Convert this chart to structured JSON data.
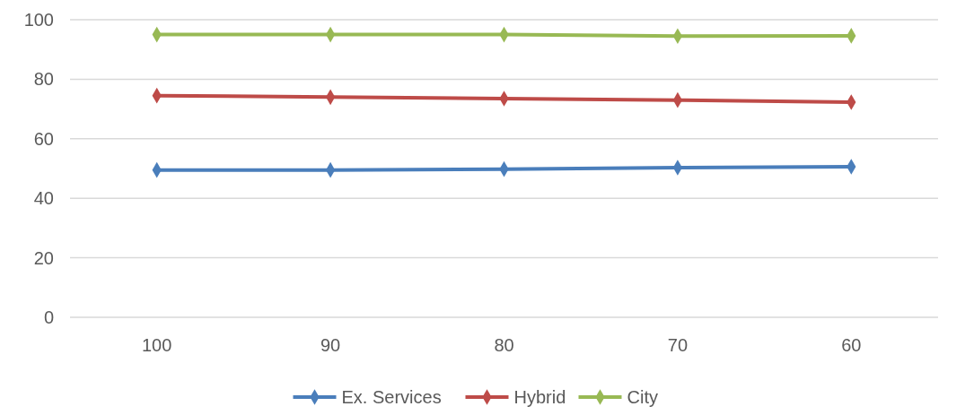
{
  "chart_data": {
    "type": "line",
    "categories": [
      "100",
      "90",
      "80",
      "70",
      "60"
    ],
    "series": [
      {
        "name": "Ex. Services",
        "color": "#4a7ebb",
        "values": [
          49.5,
          49.5,
          49.8,
          50.3,
          50.6
        ]
      },
      {
        "name": "Hybrid",
        "color": "#be4b48",
        "values": [
          74.5,
          74,
          73.5,
          73,
          72.3
        ]
      },
      {
        "name": "City",
        "color": "#98b954",
        "values": [
          95,
          95,
          95,
          94.5,
          94.6
        ]
      }
    ],
    "ylim": [
      0,
      100
    ],
    "yticks": [
      0,
      20,
      40,
      60,
      80,
      100
    ],
    "grid": "y",
    "legend": "bottom",
    "marker": "diamond",
    "line_style": "solid"
  }
}
